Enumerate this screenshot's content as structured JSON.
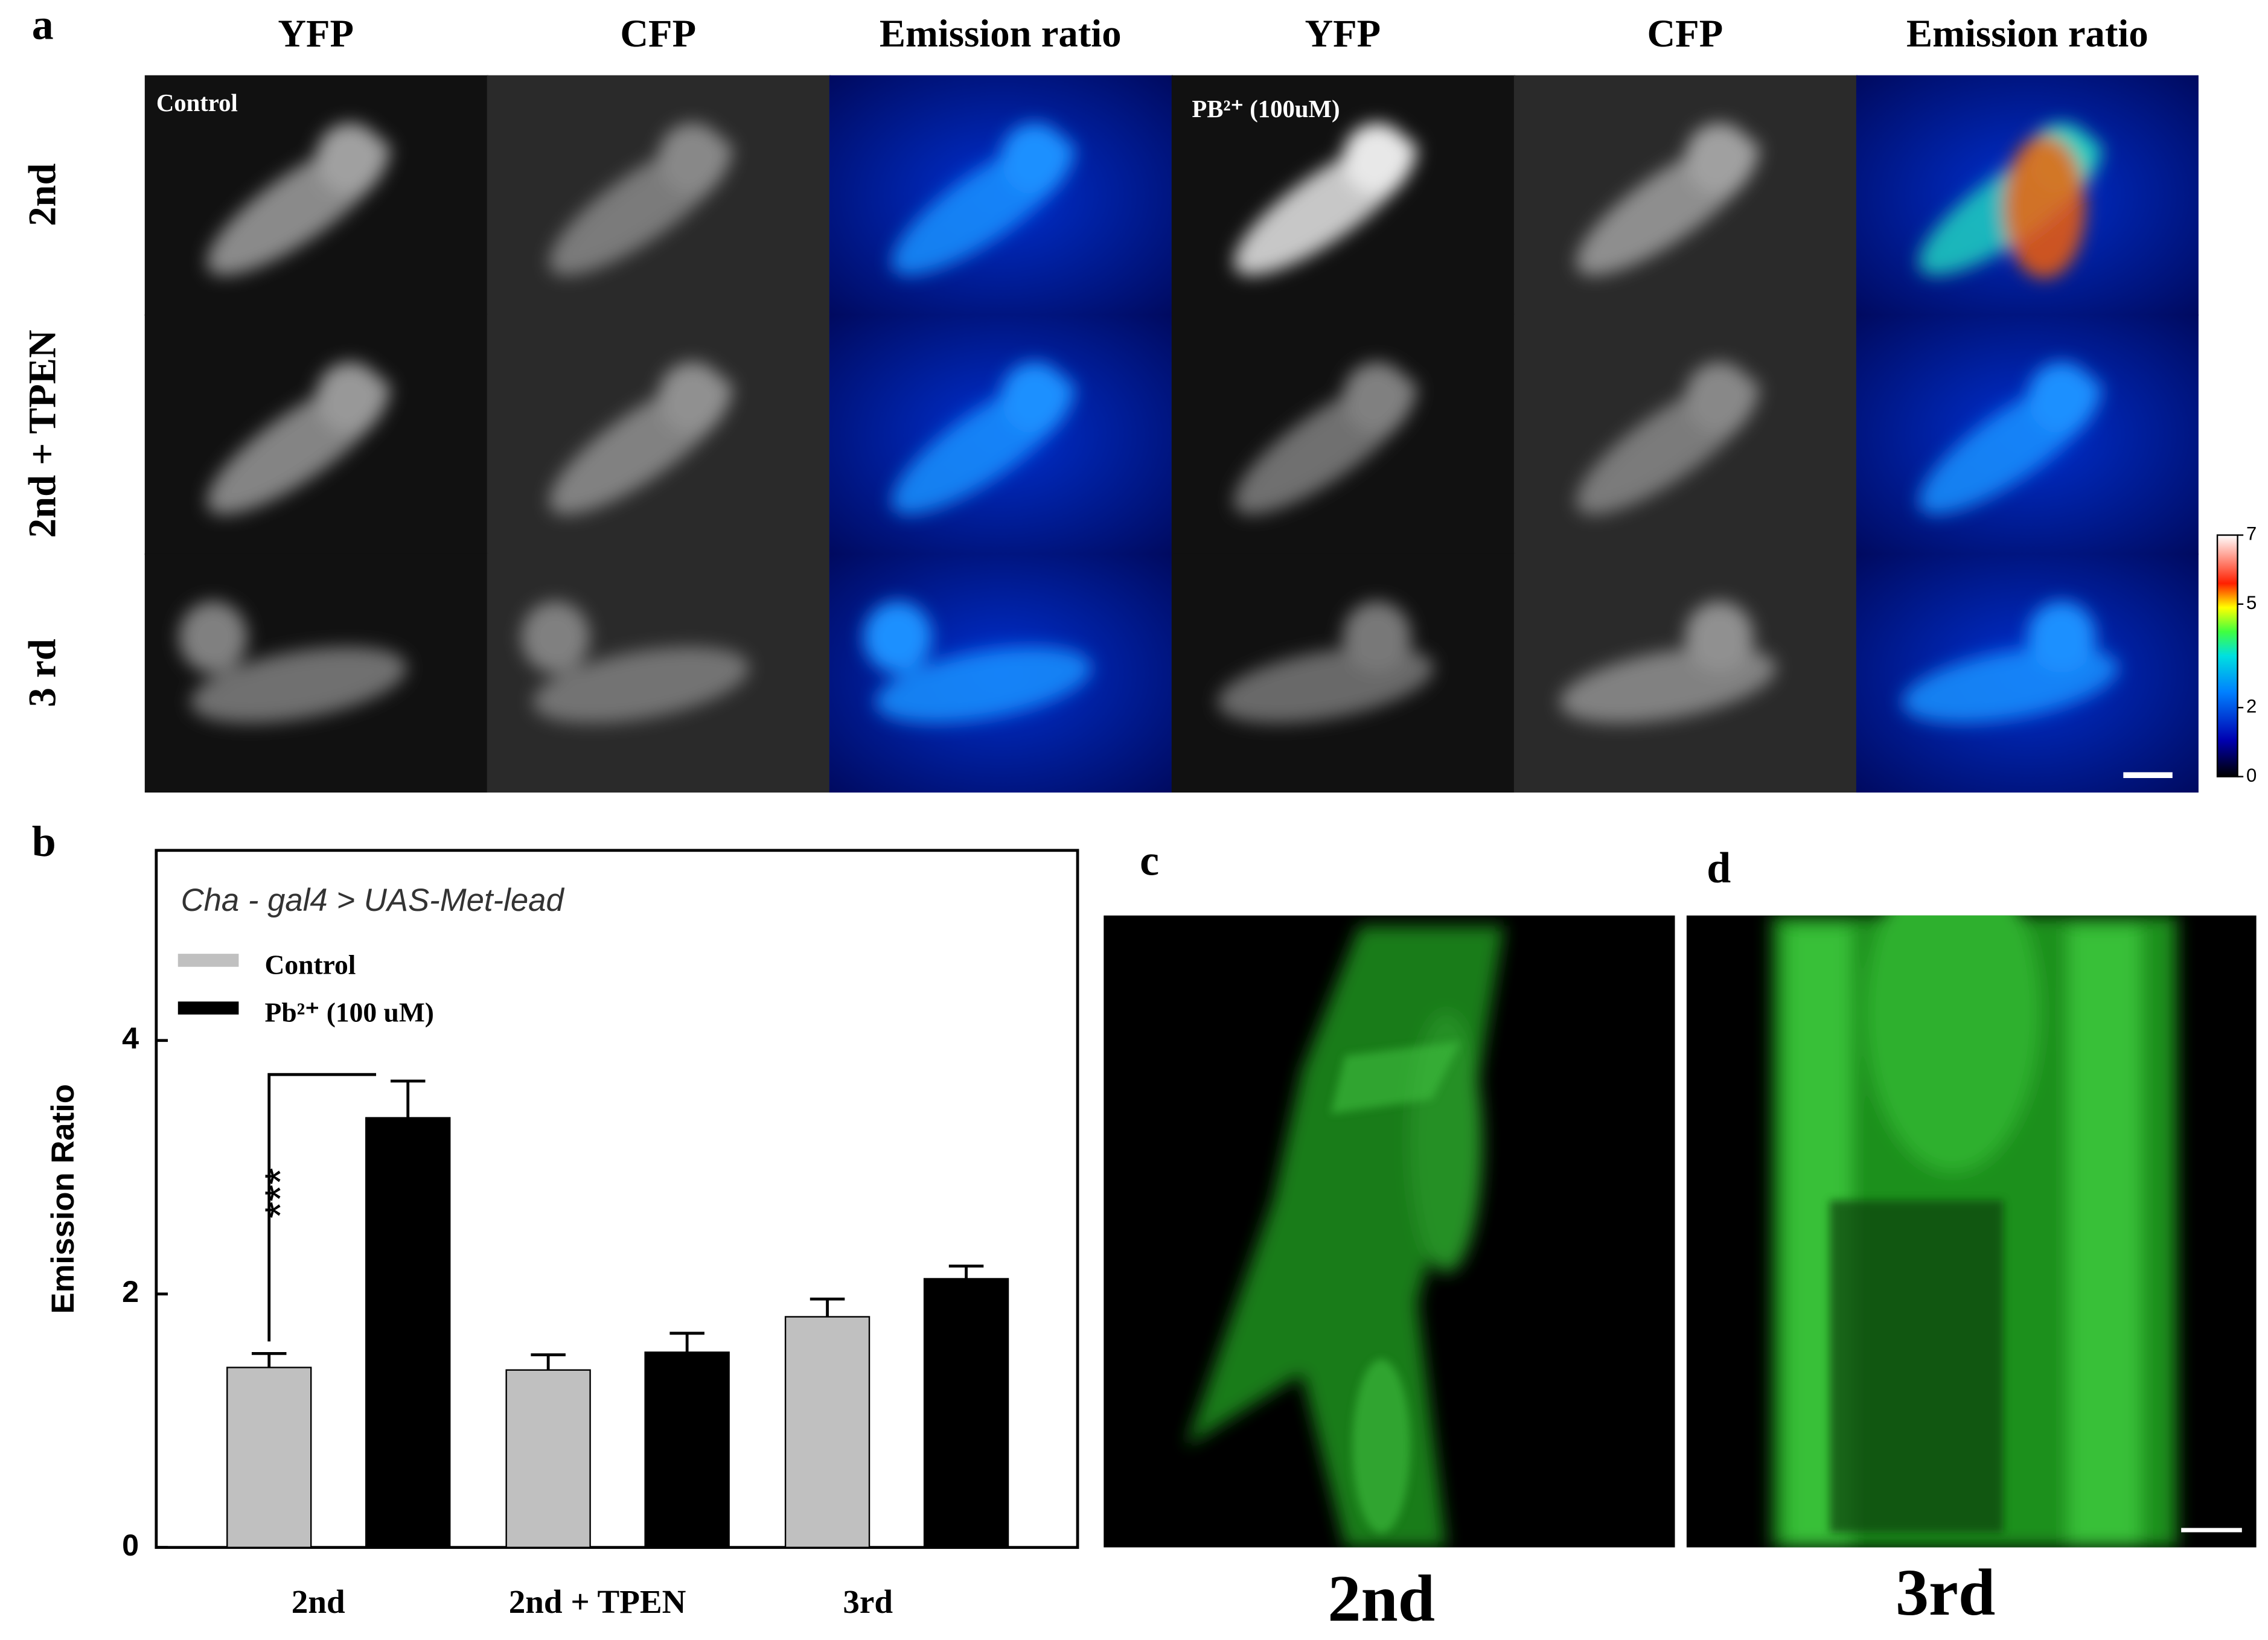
{
  "panel_labels": [
    "a",
    "b",
    "c",
    "d"
  ],
  "panel_a": {
    "column_headers": [
      "YFP",
      "CFP",
      "Emission ratio",
      "YFP",
      "CFP",
      "Emission ratio"
    ],
    "row_labels": [
      "2nd",
      "2nd + TPEN",
      "3 rd"
    ],
    "annotations": [
      "Control",
      "PB²⁺ (100uM)"
    ],
    "colorbar_ticks": [
      7,
      5,
      2,
      0
    ]
  },
  "chart_data": {
    "type": "bar",
    "annotation": "Cha - gal4 > UAS-Met-lead",
    "ylabel": "Emission Ratio",
    "categories": [
      "2nd",
      "2nd + TPEN",
      "3rd"
    ],
    "series": [
      {
        "name": "Control",
        "color": "#c0c0c0",
        "values": [
          1.42,
          1.4,
          1.82
        ],
        "errors": [
          0.11,
          0.12,
          0.14
        ]
      },
      {
        "name": "Pb²⁺ (100 uM)",
        "color": "#000000",
        "values": [
          3.39,
          1.54,
          2.12
        ],
        "errors": [
          0.29,
          0.15,
          0.1
        ]
      }
    ],
    "significance": "***",
    "ylim": [
      0,
      5.5
    ],
    "yticks": [
      0,
      2,
      4
    ]
  },
  "panel_cd": {
    "captions": [
      "2nd",
      "3rd"
    ]
  }
}
